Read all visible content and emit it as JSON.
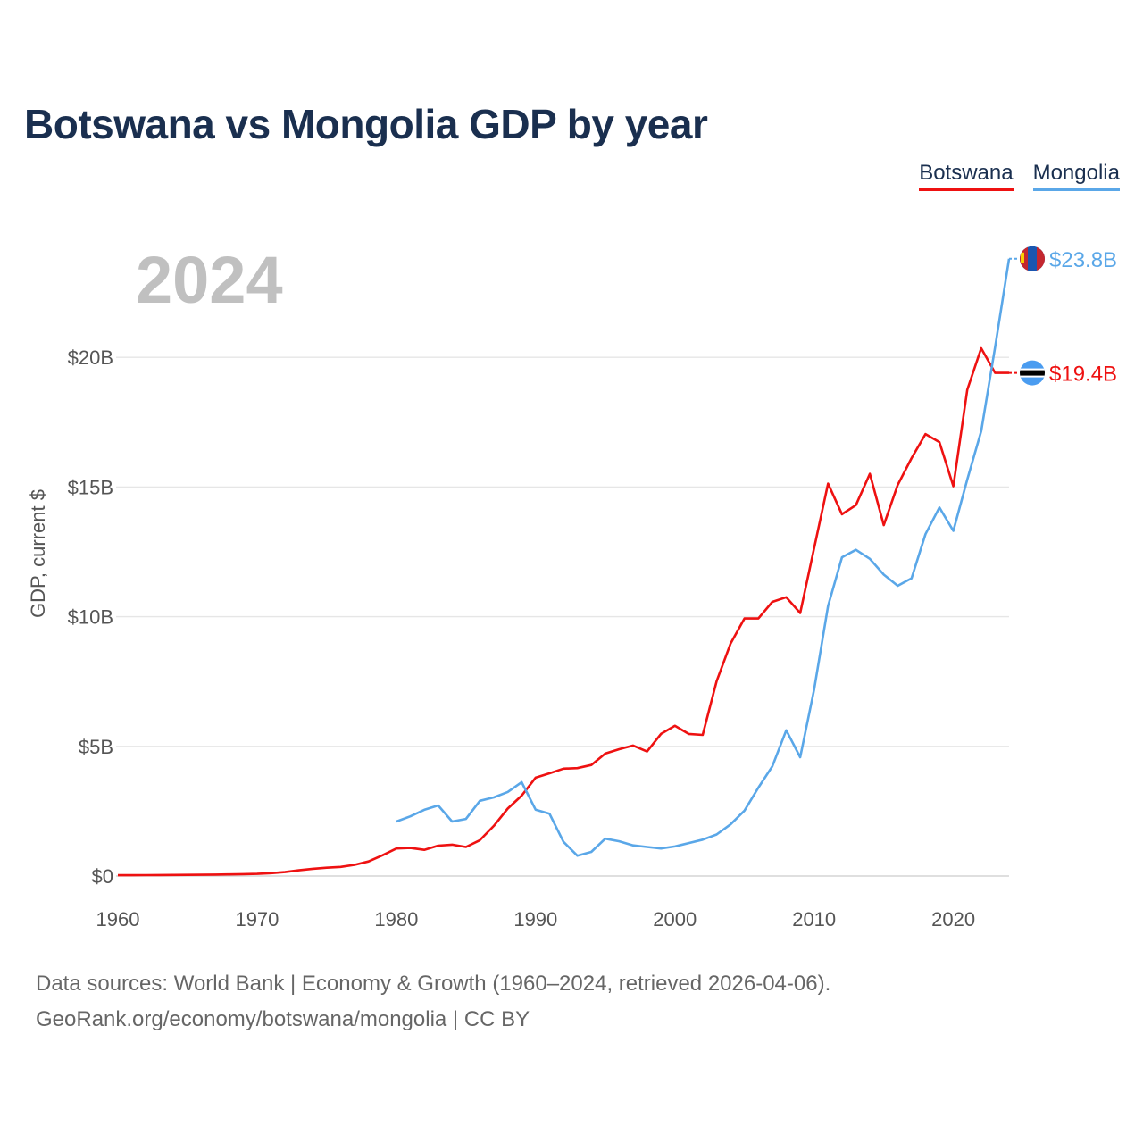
{
  "chart_data": {
    "type": "line",
    "title": "Botswana vs Mongolia GDP by year",
    "xlabel": "",
    "ylabel": "GDP, current $",
    "xlim": [
      1960,
      2024
    ],
    "ylim": [
      0,
      24000000000
    ],
    "x_ticks": [
      1960,
      1970,
      1980,
      1990,
      2000,
      2010,
      2020
    ],
    "x_tick_labels": [
      "1960",
      "1970",
      "1980",
      "1990",
      "2000",
      "2010",
      "2020"
    ],
    "y_ticks": [
      0,
      5000000000,
      10000000000,
      15000000000,
      20000000000
    ],
    "y_tick_labels": [
      "$0",
      "$5B",
      "$10B",
      "$15B",
      "$20B"
    ],
    "current_year_label": "2024",
    "grid": true,
    "legend_position": "top-right",
    "series": [
      {
        "name": "Botswana",
        "color": "#ee1111",
        "end_label": "$19.4B",
        "flag_icon": "botswana-flag-icon",
        "x": [
          1960,
          1961,
          1962,
          1963,
          1964,
          1965,
          1966,
          1967,
          1968,
          1969,
          1970,
          1971,
          1972,
          1973,
          1974,
          1975,
          1976,
          1977,
          1978,
          1979,
          1980,
          1981,
          1982,
          1983,
          1984,
          1985,
          1986,
          1987,
          1988,
          1989,
          1990,
          1991,
          1992,
          1993,
          1994,
          1995,
          1996,
          1997,
          1998,
          1999,
          2000,
          2001,
          2002,
          2003,
          2004,
          2005,
          2006,
          2007,
          2008,
          2009,
          2010,
          2011,
          2012,
          2013,
          2014,
          2015,
          2016,
          2017,
          2018,
          2019,
          2020,
          2021,
          2022,
          2023,
          2024
        ],
        "values": [
          30000000,
          32000000,
          34000000,
          37000000,
          40000000,
          44000000,
          49000000,
          54000000,
          62000000,
          72000000,
          84000000,
          110000000,
          150000000,
          220000000,
          280000000,
          320000000,
          350000000,
          430000000,
          560000000,
          800000000,
          1060000000,
          1080000000,
          1010000000,
          1170000000,
          1210000000,
          1120000000,
          1380000000,
          1930000000,
          2600000000,
          3100000000,
          3790000000,
          3960000000,
          4140000000,
          4160000000,
          4280000000,
          4720000000,
          4890000000,
          5030000000,
          4800000000,
          5480000000,
          5790000000,
          5480000000,
          5440000000,
          7510000000,
          8960000000,
          9930000000,
          9930000000,
          10570000000,
          10750000000,
          10140000000,
          12640000000,
          15130000000,
          13950000000,
          14300000000,
          15510000000,
          13530000000,
          15080000000,
          16110000000,
          17040000000,
          16730000000,
          15030000000,
          18750000000,
          20350000000,
          19400000000,
          19400000000
        ]
      },
      {
        "name": "Mongolia",
        "color": "#5aa7e8",
        "end_label": "$23.8B",
        "flag_icon": "mongolia-flag-icon",
        "x": [
          1980,
          1981,
          1982,
          1983,
          1984,
          1985,
          1986,
          1987,
          1988,
          1989,
          1990,
          1991,
          1992,
          1993,
          1994,
          1995,
          1996,
          1997,
          1998,
          1999,
          2000,
          2001,
          2002,
          2003,
          2004,
          2005,
          2006,
          2007,
          2008,
          2009,
          2010,
          2011,
          2012,
          2013,
          2014,
          2015,
          2016,
          2017,
          2018,
          2019,
          2020,
          2021,
          2022,
          2023,
          2024
        ],
        "values": [
          2100000000,
          2300000000,
          2550000000,
          2720000000,
          2100000000,
          2200000000,
          2900000000,
          3030000000,
          3240000000,
          3620000000,
          2560000000,
          2400000000,
          1320000000,
          780000000,
          930000000,
          1440000000,
          1340000000,
          1180000000,
          1120000000,
          1060000000,
          1140000000,
          1270000000,
          1400000000,
          1600000000,
          1990000000,
          2520000000,
          3410000000,
          4230000000,
          5620000000,
          4580000000,
          7190000000,
          10410000000,
          12290000000,
          12580000000,
          12230000000,
          11620000000,
          11190000000,
          11480000000,
          13180000000,
          14210000000,
          13310000000,
          15290000000,
          17150000000,
          20400000000,
          23800000000
        ]
      }
    ]
  },
  "legend": {
    "items": [
      "Botswana",
      "Mongolia"
    ]
  },
  "footer": {
    "line1": "Data sources: World Bank | Economy & Growth (1960–2024, retrieved 2026-04-06).",
    "line2": "GeoRank.org/economy/botswana/mongolia | CC BY"
  }
}
